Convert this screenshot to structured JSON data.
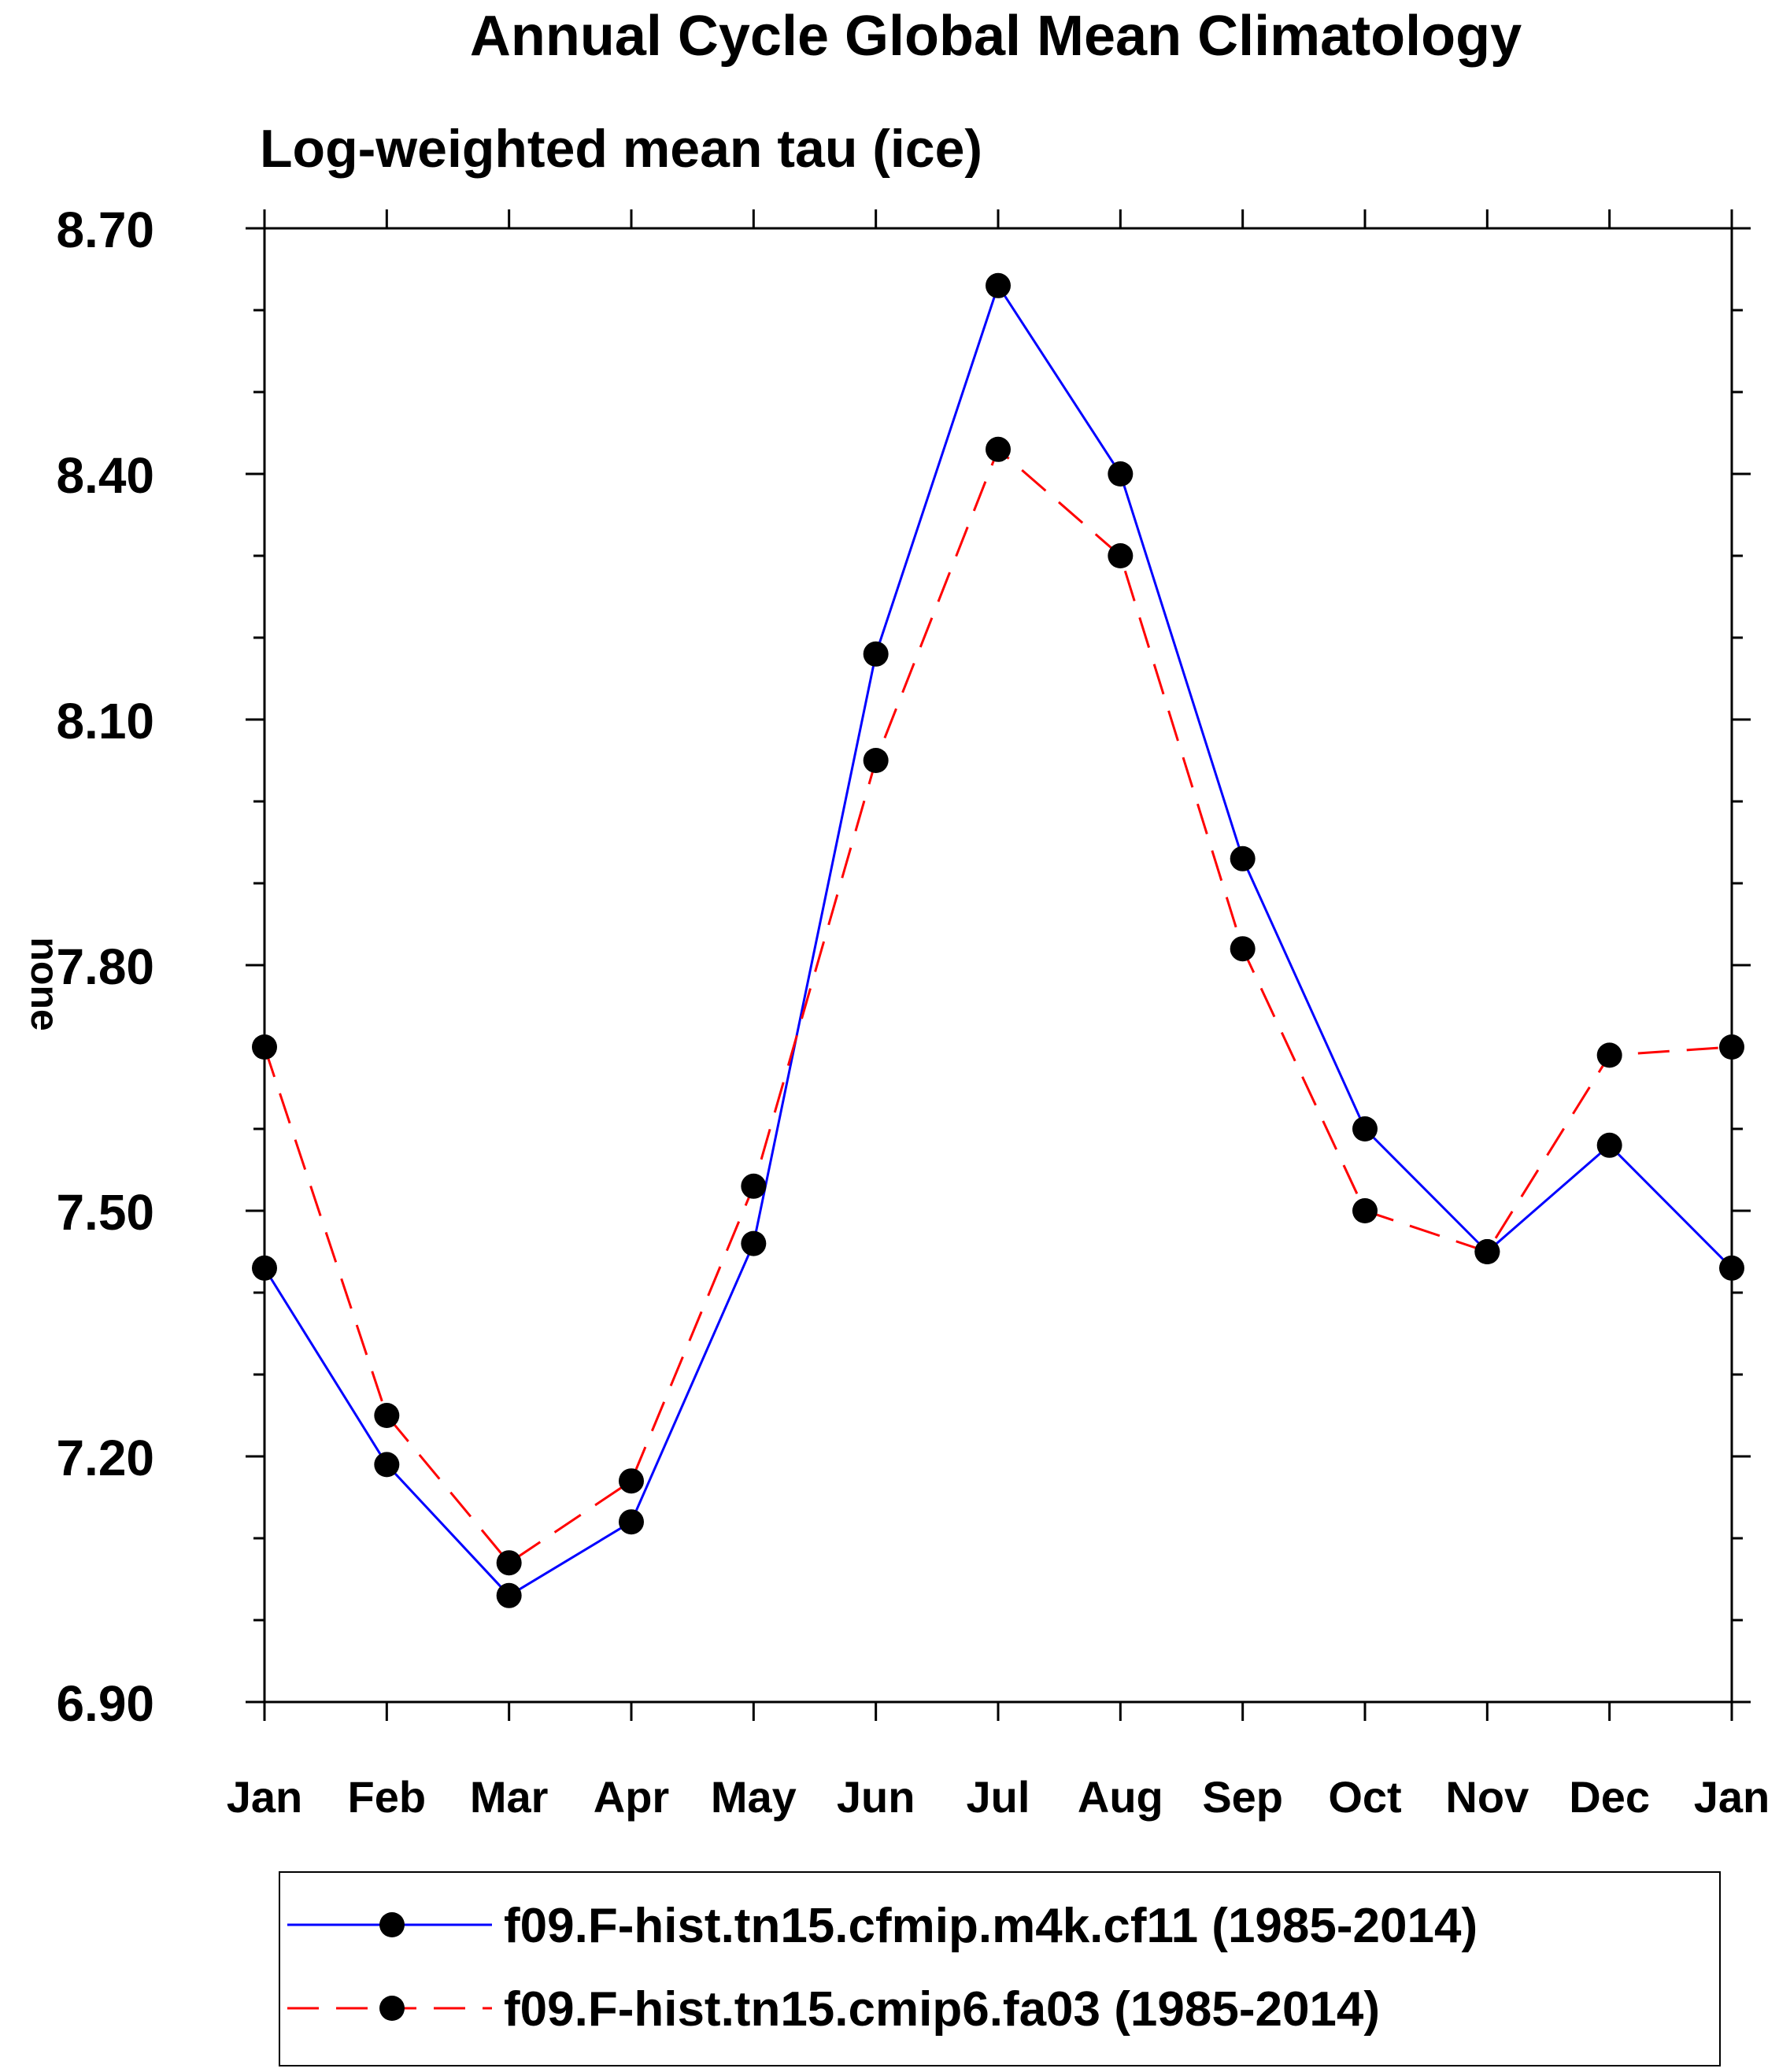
{
  "chart_data": {
    "type": "line",
    "title": "Annual Cycle Global Mean Climatology",
    "subtitle": "Log-weighted mean tau (ice)",
    "xlabel": "",
    "ylabel": "none",
    "categories": [
      "Jan",
      "Feb",
      "Mar",
      "Apr",
      "May",
      "Jun",
      "Jul",
      "Aug",
      "Sep",
      "Oct",
      "Nov",
      "Dec",
      "Jan"
    ],
    "ylim": [
      6.9,
      8.7
    ],
    "yticks": [
      "8.70",
      "8.40",
      "8.10",
      "7.80",
      "7.50",
      "7.20",
      "6.90"
    ],
    "grid": false,
    "legend_position": "bottom",
    "series": [
      {
        "name": "f09.F-hist.tn15.cfmip.m4k.cf11 (1985-2014)",
        "color": "#0000ff",
        "dash": "solid",
        "marker": "filled-circle",
        "values": [
          7.43,
          7.19,
          7.03,
          7.12,
          7.46,
          8.18,
          8.63,
          8.4,
          7.93,
          7.6,
          7.45,
          7.58,
          7.43
        ]
      },
      {
        "name": "f09.F-hist.tn15.cmip6.fa03 (1985-2014)",
        "color": "#ff0000",
        "dash": "dashed",
        "marker": "filled-circle",
        "values": [
          7.7,
          7.25,
          7.07,
          7.17,
          7.53,
          8.05,
          8.43,
          8.3,
          7.82,
          7.5,
          7.45,
          7.69,
          7.7
        ]
      }
    ]
  }
}
